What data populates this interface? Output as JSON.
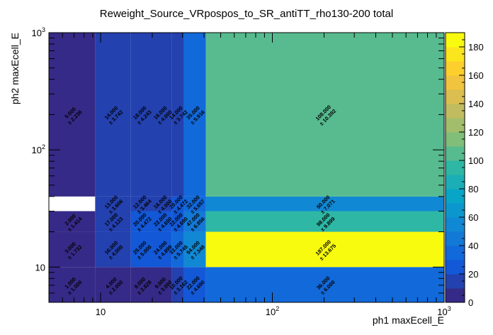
{
  "chart_data": {
    "type": "heatmap",
    "title": "Reweight_Source_VRpospos_to_SR_antiTT_rho130-200 total",
    "xlabel": "ph1 maxEcell_E",
    "ylabel": "ph2 maxEcell_E",
    "x_scale": "log",
    "y_scale": "log",
    "xlim": [
      5,
      1000
    ],
    "ylim": [
      5,
      1000
    ],
    "zlim": [
      0,
      190
    ],
    "x_edges": [
      5,
      9.3,
      15,
      20,
      26,
      30.5,
      41,
      1000
    ],
    "y_edges": [
      5,
      10,
      20,
      30,
      40,
      1000
    ],
    "x_ticks": [
      {
        "v": 10,
        "base": "10",
        "exp": ""
      },
      {
        "v": 100,
        "base": "10",
        "exp": "2"
      },
      {
        "v": 1000,
        "base": "10",
        "exp": "3"
      }
    ],
    "y_ticks": [
      {
        "v": 10,
        "base": "10",
        "exp": ""
      },
      {
        "v": 100,
        "base": "10",
        "exp": "2"
      },
      {
        "v": 1000,
        "base": "10",
        "exp": "3"
      }
    ],
    "z_ticks": [
      "0",
      "20",
      "40",
      "60",
      "80",
      "100",
      "120",
      "140",
      "160",
      "180"
    ],
    "cells": [
      {
        "x": 0,
        "y": 0,
        "value": 1,
        "label": "1.000",
        "err": "± 1.000"
      },
      {
        "x": 1,
        "y": 0,
        "value": 4,
        "label": "4.000",
        "err": "± 2.000"
      },
      {
        "x": 2,
        "y": 0,
        "value": 8,
        "label": "8.000",
        "err": "± 2.828"
      },
      {
        "x": 3,
        "y": 0,
        "value": 9,
        "label": "9.000",
        "err": "± 3.000"
      },
      {
        "x": 4,
        "y": 0,
        "value": 10,
        "label": "10.000",
        "err": "± 3.162"
      },
      {
        "x": 5,
        "y": 0,
        "value": 22,
        "label": "22.000",
        "err": "± 4.690"
      },
      {
        "x": 6,
        "y": 0,
        "value": 36,
        "label": "36.000",
        "err": "± 6.000"
      },
      {
        "x": 0,
        "y": 1,
        "value": 3,
        "label": "3.000",
        "err": "± 1.732"
      },
      {
        "x": 1,
        "y": 1,
        "value": 16,
        "label": "16.000",
        "err": "± 4.000"
      },
      {
        "x": 2,
        "y": 1,
        "value": 25,
        "label": "25.000",
        "err": "± 5.000"
      },
      {
        "x": 3,
        "y": 1,
        "value": 24,
        "label": "24.000",
        "err": "± 4.899"
      },
      {
        "x": 4,
        "y": 1,
        "value": 33,
        "label": "33.000",
        "err": "± 5.745"
      },
      {
        "x": 5,
        "y": 1,
        "value": 54,
        "label": "54.000",
        "err": "± 7.348"
      },
      {
        "x": 6,
        "y": 1,
        "value": 187,
        "label": "187.000",
        "err": "± 13.675"
      },
      {
        "x": 0,
        "y": 2,
        "value": 2,
        "label": "2.000",
        "err": "± 1.414"
      },
      {
        "x": 1,
        "y": 2,
        "value": 17,
        "label": "17.000",
        "err": "± 4.123"
      },
      {
        "x": 2,
        "y": 2,
        "value": 20,
        "label": "20.000",
        "err": "± 4.472"
      },
      {
        "x": 3,
        "y": 2,
        "value": 22,
        "label": "22.000",
        "err": "± 4.690"
      },
      {
        "x": 4,
        "y": 2,
        "value": 22,
        "label": "22.000",
        "err": "± 4.690"
      },
      {
        "x": 5,
        "y": 2,
        "value": 47,
        "label": "47.000",
        "err": "± 6.856"
      },
      {
        "x": 6,
        "y": 2,
        "value": 98,
        "label": "98.000",
        "err": "± 9.899"
      },
      {
        "x": 1,
        "y": 3,
        "value": 13,
        "label": "13.000",
        "err": "± 3.606"
      },
      {
        "x": 2,
        "y": 3,
        "value": 12,
        "label": "12.000",
        "err": "± 3.464"
      },
      {
        "x": 3,
        "y": 3,
        "value": 16,
        "label": "16.000",
        "err": "± 4.000"
      },
      {
        "x": 4,
        "y": 3,
        "value": 20,
        "label": "20.000",
        "err": "± 4.472"
      },
      {
        "x": 5,
        "y": 3,
        "value": 32,
        "label": "32.000",
        "err": "± 5.657"
      },
      {
        "x": 6,
        "y": 3,
        "value": 50,
        "label": "50.000",
        "err": "± 7.071"
      },
      {
        "x": 0,
        "y": 4,
        "value": 5,
        "label": "5.000",
        "err": "± 2.236"
      },
      {
        "x": 1,
        "y": 4,
        "value": 14,
        "label": "14.000",
        "err": "± 3.742"
      },
      {
        "x": 2,
        "y": 4,
        "value": 18,
        "label": "18.000",
        "err": "± 4.243"
      },
      {
        "x": 3,
        "y": 4,
        "value": 16,
        "label": "16.000",
        "err": "± 4.000"
      },
      {
        "x": 4,
        "y": 4,
        "value": 14,
        "label": "14.000",
        "err": "± 3.742"
      },
      {
        "x": 5,
        "y": 4,
        "value": 35,
        "label": "35.000",
        "err": "± 5.916"
      },
      {
        "x": 6,
        "y": 4,
        "value": 108,
        "label": "108.000",
        "err": "± 10.392"
      }
    ]
  }
}
